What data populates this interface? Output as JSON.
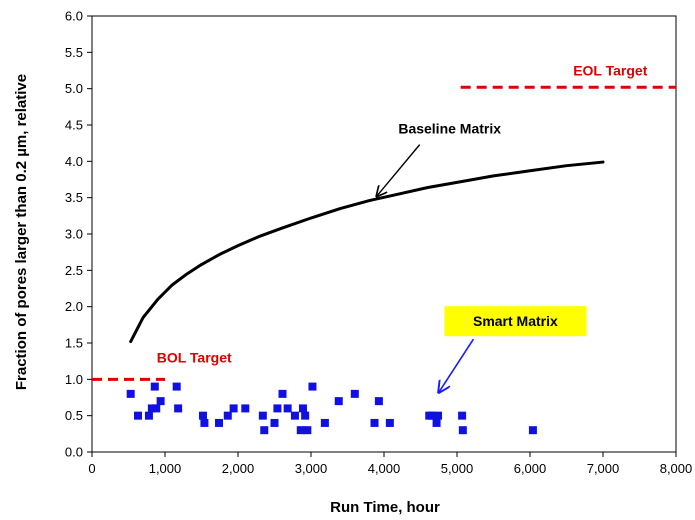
{
  "chart_data": {
    "type": "scatter",
    "xlabel": "Run Time, hour",
    "ylabel": "Fraction of pores larger than 0.2 µm, relative",
    "xlim": [
      0,
      8000
    ],
    "ylim": [
      0.0,
      6.0
    ],
    "x_ticks": [
      0,
      1000,
      2000,
      3000,
      4000,
      5000,
      6000,
      7000,
      8000
    ],
    "x_tick_labels": [
      "0",
      "1,000",
      "2,000",
      "3,000",
      "4,000",
      "5,000",
      "6,000",
      "7,000",
      "8,000"
    ],
    "y_ticks": [
      0.0,
      0.5,
      1.0,
      1.5,
      2.0,
      2.5,
      3.0,
      3.5,
      4.0,
      4.5,
      5.0,
      5.5,
      6.0
    ],
    "y_tick_labels": [
      "0.0",
      "0.5",
      "1.0",
      "1.5",
      "2.0",
      "2.5",
      "3.0",
      "3.5",
      "4.0",
      "4.5",
      "5.0",
      "5.5",
      "6.0"
    ],
    "grid": false,
    "legend": "none",
    "colors": {
      "baseline": "#000000",
      "smart": "#1010e0",
      "target": "#e00000",
      "callout_bg": "#ffff00",
      "arrow_blue": "#1a1aff"
    },
    "series": [
      {
        "type": "line",
        "x": [
          530,
          700,
          900,
          1100,
          1300,
          1500,
          1750,
          2000,
          2300,
          2600,
          3000,
          3400,
          3800,
          4200,
          4600,
          5000,
          5500,
          6000,
          6500,
          7000
        ],
        "y": [
          1.52,
          1.85,
          2.1,
          2.3,
          2.45,
          2.58,
          2.72,
          2.84,
          2.97,
          3.08,
          3.22,
          3.35,
          3.46,
          3.55,
          3.64,
          3.71,
          3.8,
          3.87,
          3.94,
          3.99
        ]
      },
      {
        "type": "scatter",
        "x": [
          530,
          630,
          780,
          820,
          860,
          880,
          940,
          1160,
          1180,
          1520,
          1540,
          1740,
          1860,
          1940,
          2100,
          2340,
          2360,
          2500,
          2540,
          2610,
          2680,
          2780,
          2860,
          2890,
          2920,
          2950,
          3020,
          3190,
          3380,
          3600,
          3870,
          3930,
          4080,
          4620,
          4660,
          4720,
          4740,
          5070,
          5080,
          6040
        ],
        "y": [
          0.8,
          0.5,
          0.5,
          0.6,
          0.9,
          0.6,
          0.7,
          0.9,
          0.6,
          0.5,
          0.4,
          0.4,
          0.5,
          0.6,
          0.6,
          0.5,
          0.3,
          0.4,
          0.6,
          0.8,
          0.6,
          0.5,
          0.3,
          0.6,
          0.5,
          0.3,
          0.9,
          0.4,
          0.7,
          0.8,
          0.4,
          0.7,
          0.4,
          0.5,
          0.5,
          0.4,
          0.5,
          0.5,
          0.3,
          0.3
        ]
      },
      {
        "type": "dashed-line",
        "x": [
          0,
          1000
        ],
        "y": [
          1.0,
          1.0
        ]
      },
      {
        "type": "dashed-line",
        "x": [
          5050,
          8000
        ],
        "y": [
          5.02,
          5.02
        ]
      }
    ],
    "annotations": [
      {
        "text": "Baseline Matrix",
        "x": 4900,
        "y": 4.45,
        "arrow_to": [
          3900,
          3.52
        ]
      },
      {
        "text": "Smart Matrix",
        "x": 5800,
        "y": 1.8,
        "arrow_to": [
          4750,
          0.82
        ],
        "boxed": true
      },
      {
        "text": "BOL Target",
        "x": 1400,
        "y": 1.3
      },
      {
        "text": "EOL Target",
        "x": 7100,
        "y": 5.25
      }
    ]
  }
}
